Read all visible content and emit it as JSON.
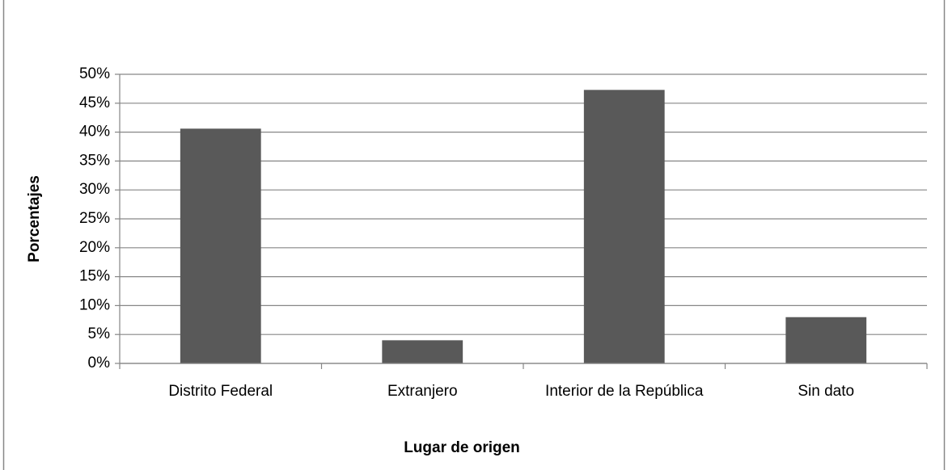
{
  "chart_data": {
    "type": "bar",
    "x_label": "Lugar de origen",
    "y_label": "Porcentajes",
    "categories": [
      "Distrito Federal",
      "Extranjero",
      "Interior de la República",
      "Sin dato"
    ],
    "values": [
      40.6,
      4.0,
      47.3,
      8.0
    ],
    "color": "#595959",
    "ylim": [
      0,
      50
    ],
    "yticks": [
      {
        "value": 0,
        "label": "0%"
      },
      {
        "value": 5,
        "label": "5%"
      },
      {
        "value": 10,
        "label": "10%"
      },
      {
        "value": 15,
        "label": "15%"
      },
      {
        "value": 20,
        "label": "20%"
      },
      {
        "value": 25,
        "label": "25%"
      },
      {
        "value": 30,
        "label": "30%"
      },
      {
        "value": 35,
        "label": "35%"
      },
      {
        "value": 40,
        "label": "40%"
      },
      {
        "value": 45,
        "label": "45%"
      },
      {
        "value": 50,
        "label": "50%"
      }
    ],
    "grid": true
  }
}
